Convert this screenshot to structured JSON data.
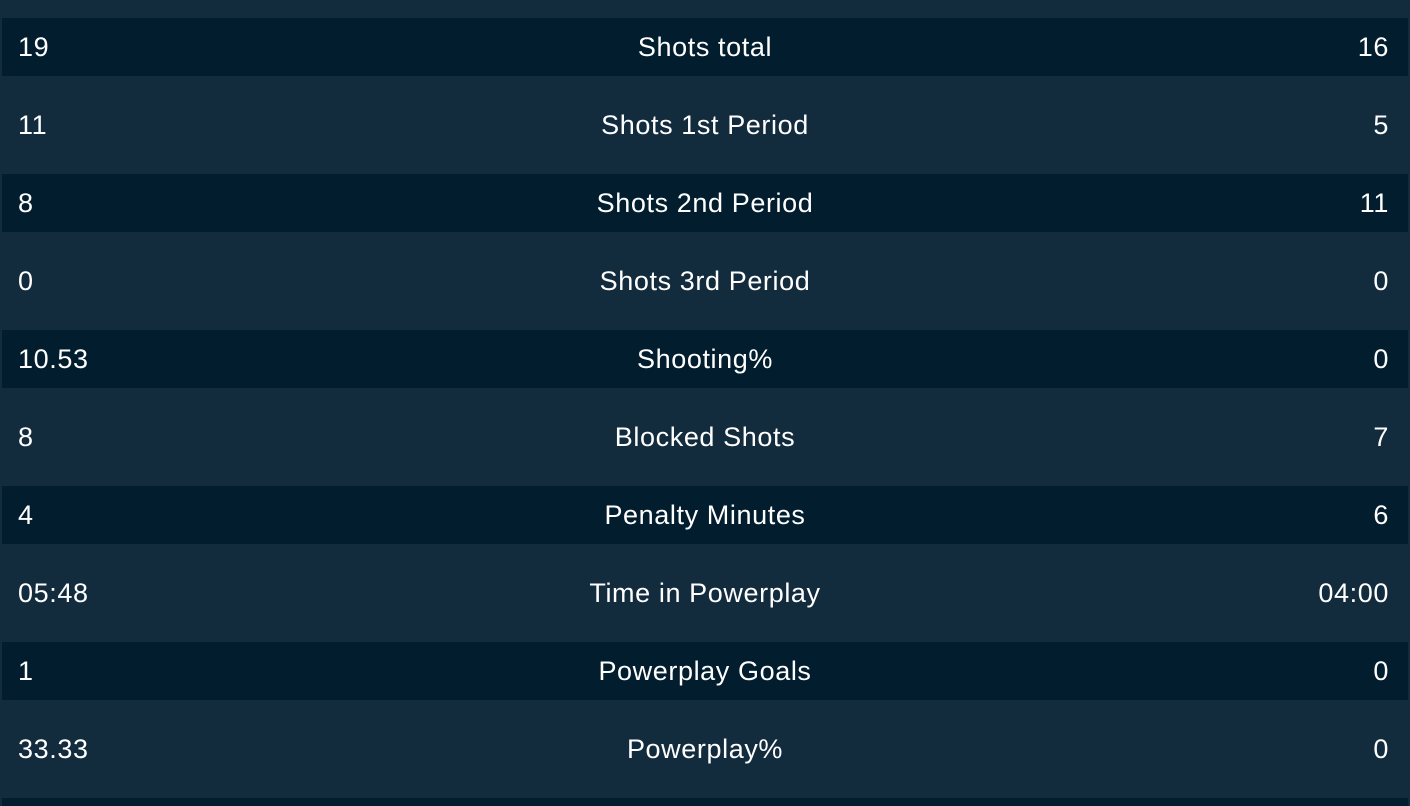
{
  "stats": [
    {
      "home": "19",
      "label": "Shots total",
      "away": "16"
    },
    {
      "home": "11",
      "label": "Shots 1st Period",
      "away": "5"
    },
    {
      "home": "8",
      "label": "Shots 2nd Period",
      "away": "11"
    },
    {
      "home": "0",
      "label": "Shots 3rd Period",
      "away": "0"
    },
    {
      "home": "10.53",
      "label": "Shooting%",
      "away": "0"
    },
    {
      "home": "8",
      "label": "Blocked Shots",
      "away": "7"
    },
    {
      "home": "4",
      "label": "Penalty Minutes",
      "away": "6"
    },
    {
      "home": "05:48",
      "label": "Time in Powerplay",
      "away": "04:00"
    },
    {
      "home": "1",
      "label": "Powerplay Goals",
      "away": "0"
    },
    {
      "home": "33.33",
      "label": "Powerplay%",
      "away": "0"
    }
  ],
  "colors": {
    "background": "#122b3d",
    "row_dark": "#011d2e",
    "text": "#ffffff"
  }
}
